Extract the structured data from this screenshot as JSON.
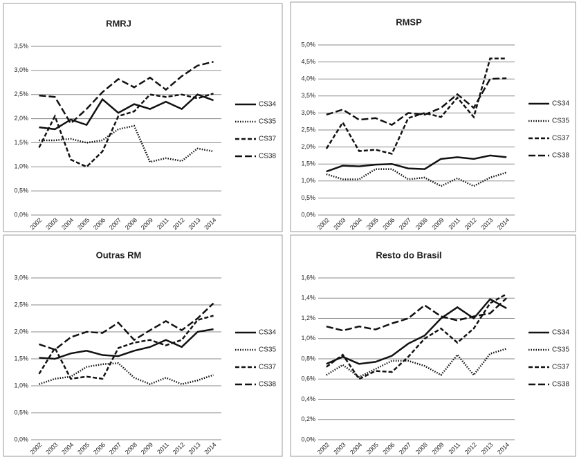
{
  "chart_data": [
    {
      "type": "line",
      "title": "RMRJ",
      "categories": [
        "2002",
        "2003",
        "2004",
        "2005",
        "2006",
        "2007",
        "2008",
        "2009",
        "2011",
        "2012",
        "2013",
        "2014"
      ],
      "ylim": [
        0,
        3.5
      ],
      "yticks": [
        {
          "value": 0,
          "label": "0,0%"
        },
        {
          "value": 0.5,
          "label": "0,5%"
        },
        {
          "value": 1,
          "label": "1,0%"
        },
        {
          "value": 1.5,
          "label": "1,5%"
        },
        {
          "value": 2,
          "label": "2,0%"
        },
        {
          "value": 2.5,
          "label": "2,5%"
        },
        {
          "value": 3,
          "label": "3,0%"
        },
        {
          "value": 3.5,
          "label": "3,5%"
        }
      ],
      "grid": true,
      "legend": "right",
      "series": [
        {
          "name": "CS34",
          "color": "#111111",
          "dash": "solid",
          "values": [
            1.82,
            1.78,
            1.98,
            1.87,
            2.4,
            2.12,
            2.3,
            2.2,
            2.35,
            2.2,
            2.5,
            2.38
          ]
        },
        {
          "name": "CS35",
          "color": "#111111",
          "dash": "dotted",
          "values": [
            1.55,
            1.55,
            1.58,
            1.5,
            1.55,
            1.78,
            1.85,
            1.1,
            1.18,
            1.12,
            1.38,
            1.32
          ]
        },
        {
          "name": "CS37",
          "color": "#111111",
          "dash": "dashed",
          "values": [
            1.4,
            2.05,
            1.15,
            1.0,
            1.32,
            2.05,
            2.15,
            2.5,
            2.45,
            2.5,
            2.42,
            2.52
          ]
        },
        {
          "name": "CS38",
          "color": "#111111",
          "dash": "long-dashed",
          "values": [
            2.48,
            2.45,
            1.9,
            2.2,
            2.55,
            2.82,
            2.65,
            2.85,
            2.6,
            2.88,
            3.1,
            3.18
          ]
        }
      ]
    },
    {
      "type": "line",
      "title": "RMSP",
      "categories": [
        "2002",
        "2003",
        "2004",
        "2005",
        "2006",
        "2007",
        "2008",
        "2009",
        "2011",
        "2012",
        "2013",
        "2014"
      ],
      "ylim": [
        0,
        5
      ],
      "yticks": [
        {
          "value": 0,
          "label": "0,0%"
        },
        {
          "value": 0.5,
          "label": "0,5%"
        },
        {
          "value": 1,
          "label": "1,0%"
        },
        {
          "value": 1.5,
          "label": "1,5%"
        },
        {
          "value": 2,
          "label": "2,0%"
        },
        {
          "value": 2.5,
          "label": "2,5%"
        },
        {
          "value": 3,
          "label": "3,0%"
        },
        {
          "value": 3.5,
          "label": "3,5%"
        },
        {
          "value": 4,
          "label": "4,0%"
        },
        {
          "value": 4.5,
          "label": "4,5%"
        },
        {
          "value": 5,
          "label": "5,0%"
        }
      ],
      "grid": true,
      "legend": "right",
      "series": [
        {
          "name": "CS34",
          "color": "#111111",
          "dash": "solid",
          "values": [
            1.28,
            1.45,
            1.43,
            1.48,
            1.5,
            1.37,
            1.35,
            1.65,
            1.7,
            1.65,
            1.75,
            1.7
          ]
        },
        {
          "name": "CS35",
          "color": "#111111",
          "dash": "dotted",
          "values": [
            1.2,
            1.05,
            1.05,
            1.35,
            1.35,
            1.05,
            1.1,
            0.85,
            1.08,
            0.85,
            1.1,
            1.25
          ]
        },
        {
          "name": "CS37",
          "color": "#111111",
          "dash": "dashed",
          "values": [
            1.95,
            2.72,
            1.88,
            1.92,
            1.8,
            2.85,
            3.0,
            2.88,
            3.45,
            2.88,
            4.6,
            4.6
          ]
        },
        {
          "name": "CS38",
          "color": "#111111",
          "dash": "long-dashed",
          "values": [
            2.95,
            3.1,
            2.8,
            2.85,
            2.65,
            3.0,
            2.95,
            3.15,
            3.55,
            3.15,
            4.0,
            4.02
          ]
        }
      ]
    },
    {
      "type": "line",
      "title": "Outras RM",
      "categories": [
        "2002",
        "2003",
        "2004",
        "2005",
        "2006",
        "2007",
        "2008",
        "2009",
        "2011",
        "2012",
        "2013",
        "2014"
      ],
      "ylim": [
        0,
        3
      ],
      "yticks": [
        {
          "value": 0,
          "label": "0,0%"
        },
        {
          "value": 0.5,
          "label": "0,5%"
        },
        {
          "value": 1,
          "label": "1,0%"
        },
        {
          "value": 1.5,
          "label": "1,5%"
        },
        {
          "value": 2,
          "label": "2,0%"
        },
        {
          "value": 2.5,
          "label": "2,5%"
        },
        {
          "value": 3,
          "label": "3,0%"
        }
      ],
      "grid": true,
      "legend": "right",
      "series": [
        {
          "name": "CS34",
          "color": "#111111",
          "dash": "solid",
          "values": [
            1.52,
            1.5,
            1.6,
            1.65,
            1.57,
            1.55,
            1.65,
            1.72,
            1.85,
            1.72,
            2.0,
            2.05
          ]
        },
        {
          "name": "CS35",
          "color": "#111111",
          "dash": "dotted",
          "values": [
            1.03,
            1.13,
            1.17,
            1.35,
            1.4,
            1.42,
            1.15,
            1.03,
            1.15,
            1.03,
            1.1,
            1.2
          ]
        },
        {
          "name": "CS37",
          "color": "#111111",
          "dash": "dashed",
          "values": [
            1.22,
            1.7,
            1.13,
            1.17,
            1.13,
            1.7,
            1.8,
            1.85,
            1.75,
            1.85,
            2.22,
            2.3
          ]
        },
        {
          "name": "CS38",
          "color": "#111111",
          "dash": "long-dashed",
          "values": [
            1.77,
            1.67,
            1.9,
            2.0,
            1.98,
            2.17,
            1.85,
            2.03,
            2.2,
            2.03,
            2.25,
            2.53
          ]
        }
      ]
    },
    {
      "type": "line",
      "title": "Resto do Brasil",
      "categories": [
        "2002",
        "2003",
        "2004",
        "2005",
        "2006",
        "2007",
        "2008",
        "2009",
        "2011",
        "2012",
        "2013",
        "2014"
      ],
      "ylim": [
        0,
        1.6
      ],
      "yticks": [
        {
          "value": 0,
          "label": "0,0%"
        },
        {
          "value": 0.2,
          "label": "0,2%"
        },
        {
          "value": 0.4,
          "label": "0,4%"
        },
        {
          "value": 0.6,
          "label": "0,6%"
        },
        {
          "value": 0.8,
          "label": "0,8%"
        },
        {
          "value": 1,
          "label": "1,0%"
        },
        {
          "value": 1.2,
          "label": "1,2%"
        },
        {
          "value": 1.4,
          "label": "1,4%"
        },
        {
          "value": 1.6,
          "label": "1,6%"
        }
      ],
      "grid": true,
      "legend": "right",
      "series": [
        {
          "name": "CS34",
          "color": "#111111",
          "dash": "solid",
          "values": [
            0.75,
            0.82,
            0.75,
            0.77,
            0.83,
            0.95,
            1.03,
            1.2,
            1.31,
            1.2,
            1.39,
            1.3
          ]
        },
        {
          "name": "CS35",
          "color": "#111111",
          "dash": "dotted",
          "values": [
            0.64,
            0.74,
            0.62,
            0.7,
            0.78,
            0.78,
            0.73,
            0.64,
            0.84,
            0.64,
            0.85,
            0.9
          ]
        },
        {
          "name": "CS37",
          "color": "#111111",
          "dash": "dashed",
          "values": [
            0.72,
            0.84,
            0.6,
            0.68,
            0.67,
            0.82,
            1.0,
            1.1,
            0.96,
            1.1,
            1.35,
            1.44
          ]
        },
        {
          "name": "CS38",
          "color": "#111111",
          "dash": "long-dashed",
          "values": [
            1.12,
            1.08,
            1.12,
            1.09,
            1.15,
            1.2,
            1.33,
            1.22,
            1.18,
            1.22,
            1.25,
            1.4
          ]
        }
      ]
    }
  ]
}
